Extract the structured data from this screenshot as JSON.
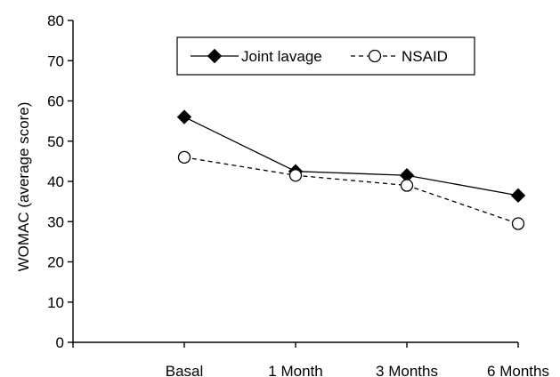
{
  "chart_data": {
    "type": "line",
    "categories": [
      "Basal",
      "1 Month",
      "3 Months",
      "6 Months"
    ],
    "series": [
      {
        "name": "Joint lavage",
        "values": [
          56,
          42.5,
          41.5,
          36.5
        ],
        "marker": "filled-diamond",
        "line": "solid",
        "color": "#000000"
      },
      {
        "name": "NSAID",
        "values": [
          46,
          41.5,
          39,
          29.5
        ],
        "marker": "open-circle",
        "line": "dashed",
        "color": "#000000"
      }
    ],
    "ylabel": "WOMAC (average score)",
    "xlabel": "",
    "ylim": [
      0,
      80
    ],
    "yticks": [
      0,
      10,
      20,
      30,
      40,
      50,
      60,
      70,
      80
    ],
    "grid": false,
    "legend_position": "top-center"
  }
}
